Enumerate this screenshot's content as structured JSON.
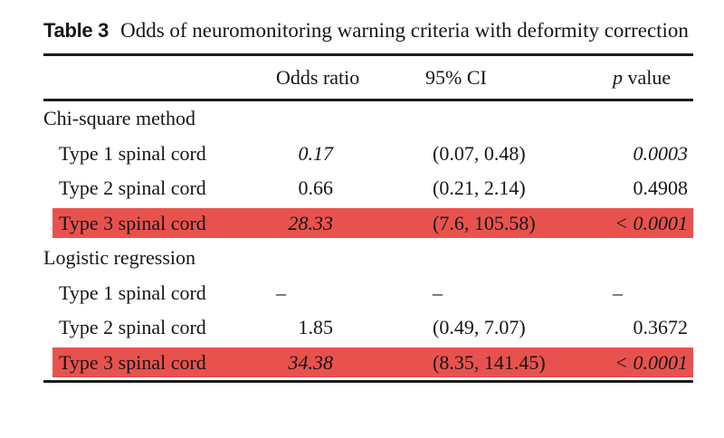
{
  "title": {
    "label": "Table 3",
    "text": "Odds of neuromonitoring warning criteria with deformity correction"
  },
  "table": {
    "header": {
      "odds_ratio": "Odds ratio",
      "ci": "95% CI",
      "p_italic": "p",
      "p_rest": " value"
    },
    "rows": [
      {
        "kind": "section",
        "label": "Chi-square method"
      },
      {
        "kind": "data",
        "label": "Type 1 spinal cord",
        "odds_ratio": "0.17",
        "ci": "(0.07, 0.48)",
        "p": "0.0003",
        "italic": true,
        "highlight": false
      },
      {
        "kind": "data",
        "label": "Type 2 spinal cord",
        "odds_ratio": "0.66",
        "ci": "(0.21, 2.14)",
        "p": "0.4908",
        "italic": false,
        "highlight": false
      },
      {
        "kind": "data",
        "label": "Type 3 spinal cord",
        "odds_ratio": "28.33",
        "ci": "(7.6, 105.58)",
        "p": "< 0.0001",
        "italic": true,
        "highlight": true
      },
      {
        "kind": "section",
        "label": "Logistic regression"
      },
      {
        "kind": "data",
        "label": "Type 1 spinal cord",
        "odds_ratio": "–",
        "ci": "–",
        "p": "–",
        "italic": false,
        "highlight": false
      },
      {
        "kind": "data",
        "label": "Type 2 spinal cord",
        "odds_ratio": "1.85",
        "ci": "(0.49, 7.07)",
        "p": "0.3672",
        "italic": false,
        "highlight": false
      },
      {
        "kind": "data",
        "label": "Type 3 spinal cord",
        "odds_ratio": "34.38",
        "ci": "(8.35, 141.45)",
        "p": "< 0.0001",
        "italic": true,
        "highlight": true
      }
    ]
  },
  "colors": {
    "highlight_red": "#e8524e",
    "text": "#161616",
    "rule": "#1b1b1b"
  }
}
